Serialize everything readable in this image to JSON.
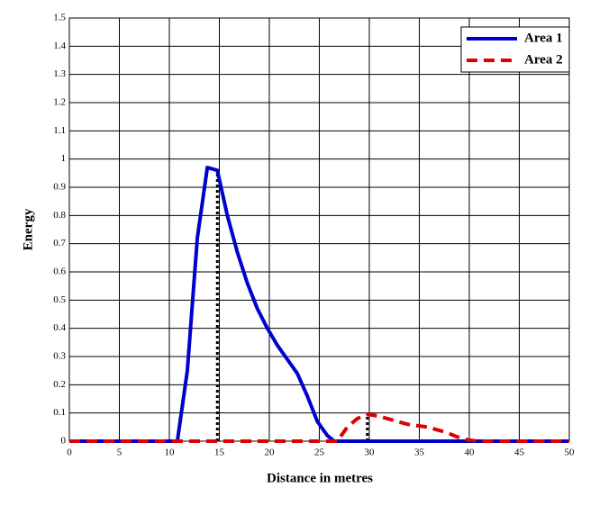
{
  "chart_data": {
    "type": "line",
    "xlabel": "Distance in metres",
    "ylabel": "Energy",
    "xlim": [
      0,
      50
    ],
    "ylim": [
      0,
      1.5
    ],
    "xticks": [
      0,
      5,
      10,
      15,
      20,
      25,
      30,
      35,
      40,
      45,
      50
    ],
    "yticks": [
      0,
      0.1,
      0.2,
      0.3,
      0.4,
      0.5,
      0.6,
      0.7,
      0.8,
      0.9,
      1,
      1.1,
      1.2,
      1.3,
      1.4,
      1.5
    ],
    "grid": true,
    "legend": "upper right",
    "series": [
      {
        "name": "Area 1",
        "color": "#0000cc",
        "dash": "solid",
        "x": [
          0,
          10.8,
          11.8,
          12.8,
          13.8,
          14.8,
          15.8,
          16.8,
          17.8,
          18.8,
          19.8,
          20.8,
          21.8,
          22.8,
          23.8,
          24.8,
          25.8,
          26.5,
          50
        ],
        "values": [
          0,
          0,
          0.25,
          0.72,
          0.97,
          0.96,
          0.8,
          0.67,
          0.56,
          0.47,
          0.4,
          0.34,
          0.29,
          0.24,
          0.16,
          0.07,
          0.02,
          0,
          0
        ]
      },
      {
        "name": "Area 2",
        "color": "#dd0000",
        "dash": "dashed",
        "x": [
          0,
          26.8,
          27.8,
          28.8,
          29.8,
          30.8,
          31.8,
          32.8,
          33.8,
          34.8,
          35.8,
          36.8,
          37.8,
          38.8,
          39.8,
          40.8,
          50
        ],
        "values": [
          0,
          0,
          0.05,
          0.08,
          0.095,
          0.09,
          0.08,
          0.07,
          0.06,
          0.055,
          0.05,
          0.04,
          0.03,
          0.015,
          0.005,
          0,
          0
        ]
      }
    ],
    "vlines": [
      {
        "x": 14.8,
        "y": 0.96
      },
      {
        "x": 29.8,
        "y": 0.095
      }
    ]
  }
}
